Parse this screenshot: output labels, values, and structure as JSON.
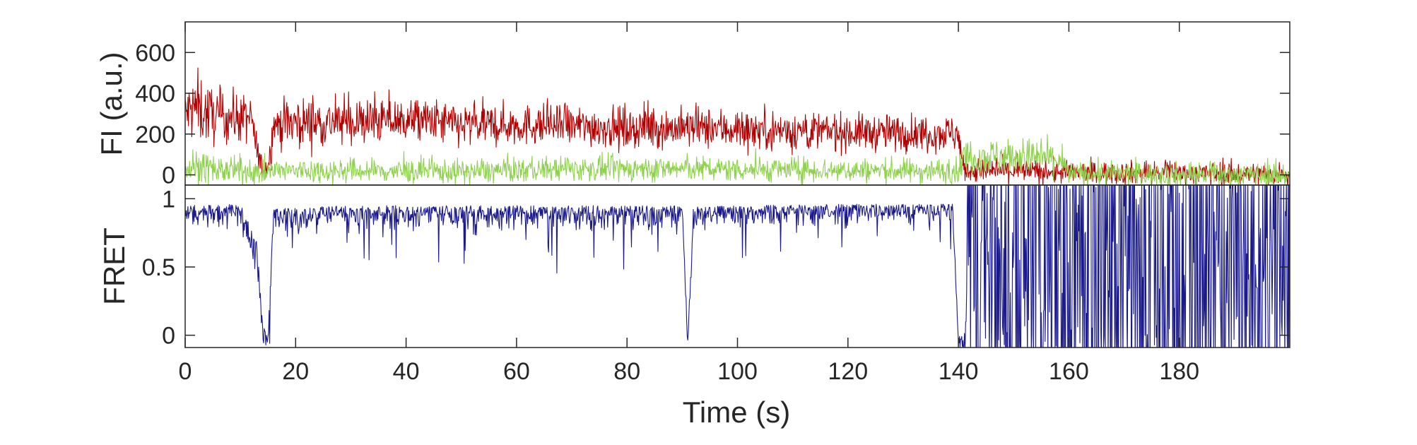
{
  "chart_data": [
    {
      "type": "line",
      "panel": "top",
      "ylabel": "FI (a.u.)",
      "xlabel": "",
      "xlim": [
        0,
        200
      ],
      "ylim": [
        -50,
        750
      ],
      "yticks": [
        0,
        200,
        400,
        600
      ],
      "xtick_labels_shown": false,
      "grid": false,
      "series": [
        {
          "color": "#b00000",
          "shape": "noisy",
          "x": [
            0,
            2,
            5,
            10,
            12,
            13,
            14,
            15,
            16,
            20,
            30,
            40,
            45,
            50,
            60,
            70,
            80,
            90,
            100,
            110,
            120,
            130,
            139,
            140,
            141,
            150,
            160,
            170,
            180,
            190,
            200
          ],
          "mean": [
            300,
            330,
            290,
            280,
            270,
            120,
            30,
            40,
            250,
            260,
            255,
            270,
            260,
            240,
            245,
            240,
            230,
            230,
            225,
            215,
            210,
            205,
            205,
            200,
            20,
            20,
            10,
            10,
            10,
            5,
            5
          ],
          "noise": [
            70,
            90,
            70,
            60,
            60,
            40,
            25,
            25,
            60,
            60,
            55,
            55,
            55,
            55,
            50,
            50,
            50,
            50,
            50,
            50,
            45,
            45,
            45,
            45,
            30,
            30,
            28,
            28,
            28,
            28,
            28
          ]
        },
        {
          "color": "#8fd14f",
          "shape": "noisy",
          "x": [
            0,
            2,
            5,
            12,
            14,
            16,
            30,
            50,
            70,
            90,
            110,
            130,
            139,
            140,
            141,
            145,
            150,
            155,
            158,
            160,
            170,
            180,
            190,
            200
          ],
          "mean": [
            30,
            40,
            25,
            15,
            10,
            20,
            20,
            15,
            30,
            30,
            25,
            20,
            20,
            20,
            90,
            90,
            90,
            85,
            80,
            5,
            5,
            0,
            0,
            0
          ],
          "noise": [
            40,
            45,
            35,
            30,
            25,
            30,
            30,
            30,
            30,
            30,
            30,
            30,
            30,
            30,
            45,
            45,
            45,
            45,
            40,
            30,
            30,
            30,
            30,
            30
          ]
        }
      ]
    },
    {
      "type": "line",
      "panel": "bottom",
      "ylabel": "FRET",
      "xlabel": "Time (s)",
      "xlim": [
        0,
        200
      ],
      "ylim": [
        -0.09,
        1.1
      ],
      "yticks": [
        0,
        0.5,
        1
      ],
      "ytick_labels": [
        "0",
        "0.5",
        "1"
      ],
      "xticks": [
        0,
        20,
        40,
        60,
        80,
        100,
        120,
        140,
        160,
        180
      ],
      "grid": false,
      "series": [
        {
          "color": "#1a1a8c",
          "shape": "fret",
          "x": [
            0,
            10,
            13,
            14,
            15,
            16,
            30,
            50,
            80,
            90,
            91,
            92,
            100,
            120,
            139,
            140,
            141,
            142,
            150,
            170,
            190,
            200
          ],
          "mean": [
            0.95,
            0.96,
            0.7,
            0.1,
            0.0,
            0.93,
            0.95,
            0.95,
            0.95,
            0.95,
            0.0,
            0.95,
            0.95,
            0.96,
            0.96,
            0.0,
            0.0,
            0.5,
            0.55,
            0.55,
            0.55,
            0.55
          ],
          "noise": [
            0.08,
            0.08,
            0.1,
            0.1,
            0.05,
            0.08,
            0.08,
            0.08,
            0.08,
            0.08,
            0.05,
            0.08,
            0.08,
            0.07,
            0.07,
            0.05,
            0.05,
            0.6,
            0.6,
            0.6,
            0.6,
            0.6
          ]
        }
      ]
    }
  ]
}
